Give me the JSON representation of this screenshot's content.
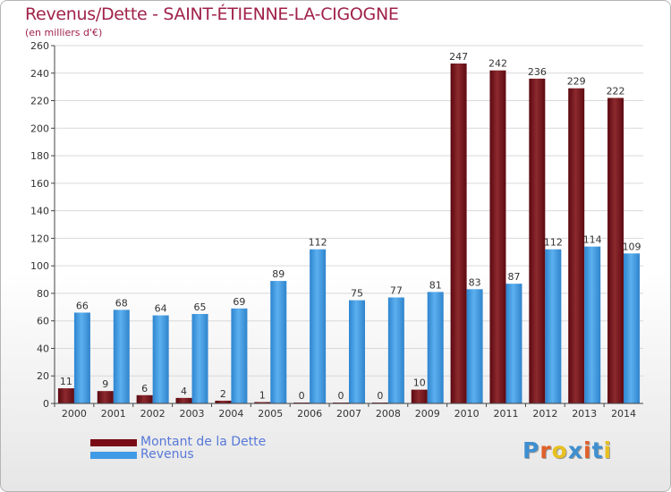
{
  "title": "Revenus/Dette - SAINT-ÉTIENNE-LA-CIGOGNE",
  "subtitle": "(en milliers d'€)",
  "brand": {
    "text": "Proxiti",
    "letter_colors": [
      "#3f8fd0",
      "#e0602a",
      "#e8c020",
      "#3f8fd0",
      "#e0602a",
      "#3f8fd0",
      "#e8c020"
    ]
  },
  "colors": {
    "title": "#a0224a",
    "debt": "#7a0b16",
    "revenue": "#3f9be6",
    "grid": "#d9d9d9",
    "axis": "#444444",
    "label": "#333333",
    "legend_text": "#5878d8"
  },
  "chart_data": {
    "type": "bar",
    "title": "Revenus/Dette - SAINT-ÉTIENNE-LA-CIGOGNE",
    "subtitle": "(en milliers d'€)",
    "categories": [
      "2000",
      "2001",
      "2002",
      "2003",
      "2004",
      "2005",
      "2006",
      "2007",
      "2008",
      "2009",
      "2010",
      "2011",
      "2012",
      "2013",
      "2014"
    ],
    "series": [
      {
        "name": "Montant de la Dette",
        "color": "#7a0b16",
        "values": [
          11,
          9,
          6,
          4,
          2,
          1,
          0,
          0,
          0,
          10,
          247,
          242,
          236,
          229,
          222
        ]
      },
      {
        "name": "Revenus",
        "color": "#3f9be6",
        "values": [
          66,
          68,
          64,
          65,
          69,
          89,
          112,
          75,
          77,
          81,
          83,
          87,
          112,
          114,
          109
        ]
      }
    ],
    "ylim": [
      0,
      260
    ],
    "yticks": [
      0,
      20,
      40,
      60,
      80,
      100,
      120,
      140,
      160,
      180,
      200,
      220,
      240,
      260
    ],
    "grid": true,
    "legend_position": "bottom-left"
  }
}
